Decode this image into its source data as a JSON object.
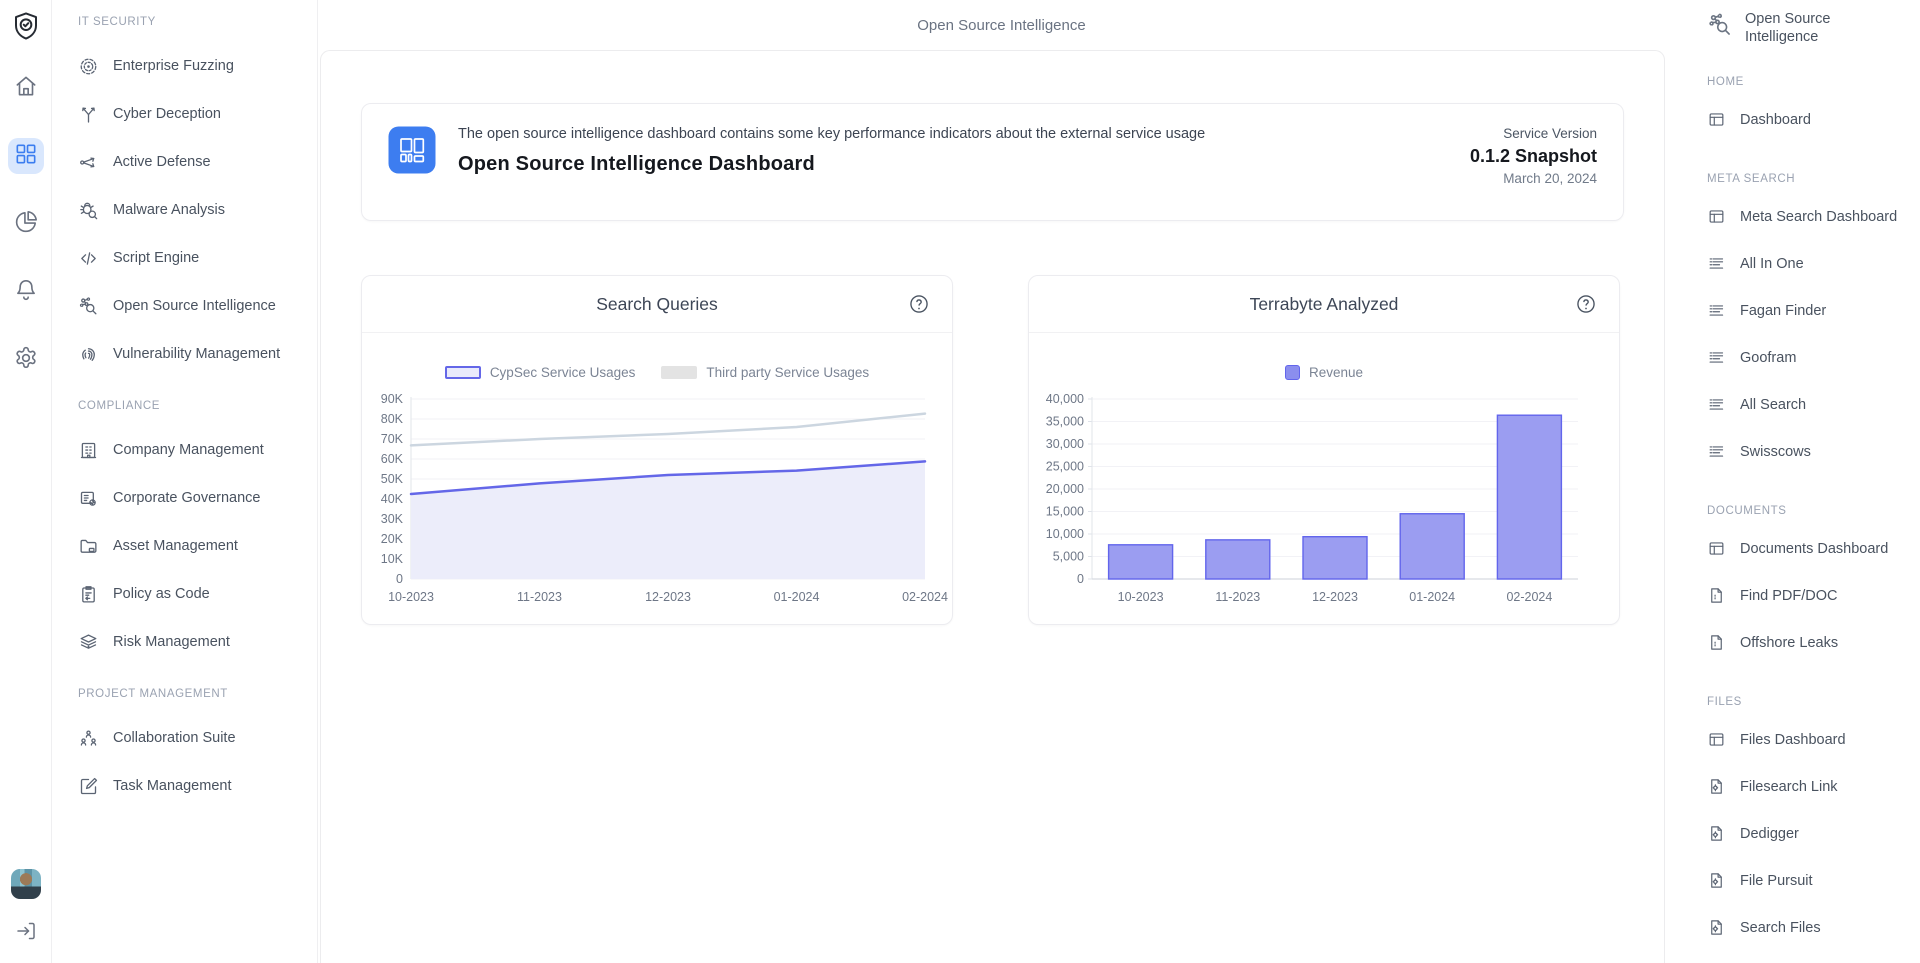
{
  "app": {
    "page_title": "Open Source Intelligence"
  },
  "colors": {
    "accent_blue": "#3b7df0",
    "active_rail_bg": "#d9e7fd",
    "series_purple": "#6467e8",
    "series_purple_fill": "#ecedfa",
    "series_gray": "#ccd6e0",
    "bar_fill": "#9b9df1",
    "bar_border": "#6265ec"
  },
  "rail": {
    "top": [
      {
        "icon": "shield-check",
        "name": "app-logo",
        "active": false,
        "interactable": false
      },
      {
        "icon": "home",
        "name": "nav-home",
        "active": false,
        "interactable": true
      },
      {
        "icon": "grid",
        "name": "nav-dashboards",
        "active": true,
        "interactable": true
      },
      {
        "icon": "pie",
        "name": "nav-analytics",
        "active": false,
        "interactable": true
      },
      {
        "icon": "bell",
        "name": "nav-notifications",
        "active": false,
        "interactable": true
      },
      {
        "icon": "gear",
        "name": "nav-settings",
        "active": false,
        "interactable": true
      }
    ],
    "bottom": [
      {
        "icon": "avatar",
        "name": "user-avatar",
        "interactable": true
      },
      {
        "icon": "logout",
        "name": "logout",
        "interactable": true
      }
    ]
  },
  "sidebar": {
    "sections": [
      {
        "header": "IT SECURITY",
        "items": [
          {
            "label": "Enterprise Fuzzing",
            "icon": "target"
          },
          {
            "label": "Cyber Deception",
            "icon": "branch"
          },
          {
            "label": "Active Defense",
            "icon": "route"
          },
          {
            "label": "Malware Analysis",
            "icon": "bug-search"
          },
          {
            "label": "Script Engine",
            "icon": "code"
          },
          {
            "label": "Open Source Intelligence",
            "icon": "network-search"
          },
          {
            "label": "Vulnerability Management",
            "icon": "fingerprint"
          }
        ]
      },
      {
        "header": "COMPLIANCE",
        "items": [
          {
            "label": "Company Management",
            "icon": "building"
          },
          {
            "label": "Corporate Governance",
            "icon": "list-gear"
          },
          {
            "label": "Asset Management",
            "icon": "folder"
          },
          {
            "label": "Policy as Code",
            "icon": "clipboard"
          },
          {
            "label": "Risk Management",
            "icon": "layers"
          }
        ]
      },
      {
        "header": "PROJECT MANAGEMENT",
        "items": [
          {
            "label": "Collaboration Suite",
            "icon": "team"
          },
          {
            "label": "Task Management",
            "icon": "edit-square"
          }
        ]
      }
    ]
  },
  "info_card": {
    "icon": "layout-blue",
    "description": "The open source intelligence dashboard contains some key performance indicators about the external service usage",
    "title": "Open Source Intelligence Dashboard",
    "version_label": "Service Version",
    "version": "0.1.2 Snapshot",
    "date": "March 20, 2024"
  },
  "chart_data": [
    {
      "type": "area",
      "title": "Search Queries",
      "has_help_icon": true,
      "x": [
        "10-2023",
        "11-2023",
        "12-2023",
        "01-2024",
        "02-2024"
      ],
      "series": [
        {
          "name": "CypSec Service Usages",
          "values": [
            42500,
            47800,
            52000,
            54200,
            58800
          ],
          "color": "#6467e8",
          "fill": "#ecedfa",
          "style": "area",
          "swatch": "outline",
          "swatch_fill": "#e9eafb"
        },
        {
          "name": "Third party Service Usages",
          "values": [
            66800,
            70000,
            72500,
            76000,
            82700
          ],
          "color": "#ccd6e0",
          "style": "line",
          "swatch": "block",
          "swatch_fill": "#e3e3e3"
        }
      ],
      "ylim": [
        0,
        90000
      ],
      "ytick": 10000,
      "ytick_format": "K",
      "grid": true,
      "legend_position": "top"
    },
    {
      "type": "bar",
      "title": "Terrabyte Analyzed",
      "has_help_icon": true,
      "x": [
        "10-2023",
        "11-2023",
        "12-2023",
        "01-2024",
        "02-2024"
      ],
      "series": [
        {
          "name": "Revenue",
          "values": [
            7600,
            8700,
            9400,
            14500,
            36400
          ],
          "color": "#9b9df1",
          "border": "#6265ec",
          "swatch": "square",
          "swatch_fill": "#8b8eee"
        }
      ],
      "ylim": [
        0,
        40000
      ],
      "ytick": 5000,
      "ytick_format": "comma",
      "grid": true,
      "legend_position": "top"
    }
  ],
  "rightbar": {
    "title": "Open Source Intelligence",
    "icon": "network-search",
    "sections": [
      {
        "header": "HOME",
        "items": [
          {
            "label": "Dashboard",
            "icon": "window"
          }
        ]
      },
      {
        "header": "META SEARCH",
        "items": [
          {
            "label": "Meta Search Dashboard",
            "icon": "window"
          },
          {
            "label": "All In One",
            "icon": "list-lines"
          },
          {
            "label": "Fagan Finder",
            "icon": "list-lines"
          },
          {
            "label": "Goofram",
            "icon": "list-lines"
          },
          {
            "label": "All Search",
            "icon": "list-lines"
          },
          {
            "label": "Swisscows",
            "icon": "list-lines"
          }
        ]
      },
      {
        "header": "DOCUMENTS",
        "items": [
          {
            "label": "Documents Dashboard",
            "icon": "window"
          },
          {
            "label": "Find PDF/DOC",
            "icon": "file"
          },
          {
            "label": "Offshore Leaks",
            "icon": "file"
          }
        ]
      },
      {
        "header": "FILES",
        "items": [
          {
            "label": "Files Dashboard",
            "icon": "window"
          },
          {
            "label": "Filesearch Link",
            "icon": "file-gear"
          },
          {
            "label": "Dedigger",
            "icon": "file-gear"
          },
          {
            "label": "File Pursuit",
            "icon": "file-gear"
          },
          {
            "label": "Search Files",
            "icon": "file-gear"
          }
        ]
      }
    ]
  }
}
